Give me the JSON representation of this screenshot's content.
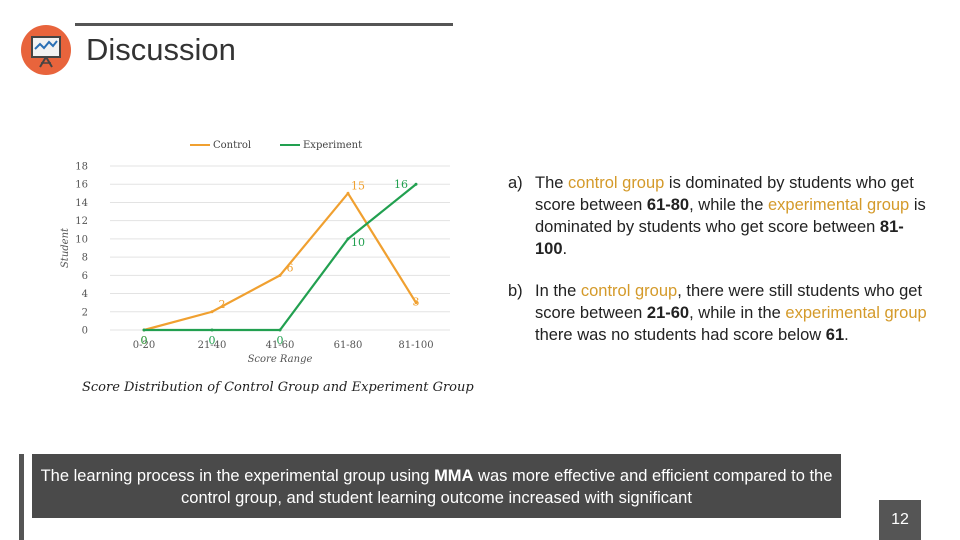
{
  "header": {
    "title": "Discussion",
    "logo_icon": "presentation-board-icon"
  },
  "chart_data": {
    "type": "line",
    "categories": [
      "0-20",
      "21-40",
      "41-60",
      "61-80",
      "81-100"
    ],
    "series": [
      {
        "name": "Control",
        "color": "#f0a030",
        "values": [
          0,
          2,
          6,
          15,
          3
        ]
      },
      {
        "name": "Experiment",
        "color": "#22a050",
        "values": [
          0,
          0,
          0,
          10,
          16
        ]
      }
    ],
    "xlabel": "Score Range",
    "ylabel": "Student",
    "ylim": [
      0,
      18
    ],
    "yticks": [
      0,
      2,
      4,
      6,
      8,
      10,
      12,
      14,
      16,
      18
    ],
    "grid": true,
    "legend": "top",
    "title": "Score Distribution of Control Group and Experiment Group"
  },
  "points": [
    {
      "marker": "a)",
      "parts": [
        {
          "t": "The "
        },
        {
          "t": "control group",
          "c": "hl"
        },
        {
          "t": " is dominated by students who get score between "
        },
        {
          "t": "61-80",
          "c": "b"
        },
        {
          "t": ", while the "
        },
        {
          "t": "experimental group",
          "c": "hl"
        },
        {
          "t": " is dominated by students who get score between "
        },
        {
          "t": "81-100",
          "c": "b"
        },
        {
          "t": "."
        }
      ]
    },
    {
      "marker": "b)",
      "parts": [
        {
          "t": "In the "
        },
        {
          "t": "control group",
          "c": "hl"
        },
        {
          "t": ", there were still students who get score between "
        },
        {
          "t": "21-60",
          "c": "b"
        },
        {
          "t": ", while in the "
        },
        {
          "t": "experimental group",
          "c": "hl"
        },
        {
          "t": " there was no students had score below "
        },
        {
          "t": "61",
          "c": "b"
        },
        {
          "t": "."
        }
      ]
    }
  ],
  "conclusion": {
    "parts": [
      {
        "t": "The learning process in the experimental group using "
      },
      {
        "t": "MMA",
        "c": "b"
      },
      {
        "t": " was more effective and efficient compared to the control group, and student learning outcome increased with significant"
      }
    ]
  },
  "page_number": "12"
}
